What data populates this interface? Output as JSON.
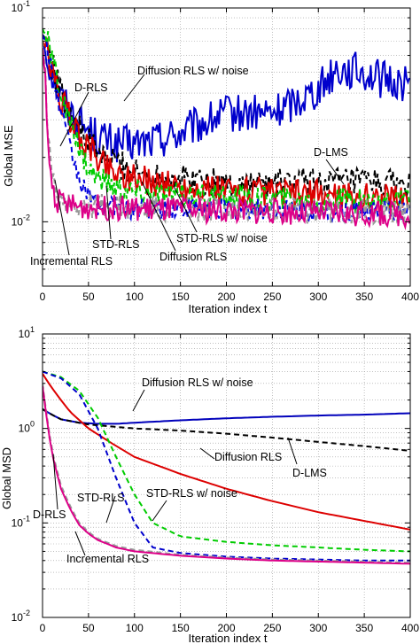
{
  "chart_data": [
    {
      "type": "line",
      "yscale": "log",
      "xlabel": "Iteration index t",
      "ylabel": "Global MSE",
      "xlim": [
        0,
        400
      ],
      "ylim": [
        0.005,
        0.1
      ],
      "grid": true,
      "xticks": [
        "0",
        "50",
        "100",
        "150",
        "200",
        "250",
        "300",
        "350",
        "400"
      ],
      "yticks": [
        {
          "value": 0.1,
          "base": "10",
          "exp": "-1"
        },
        {
          "value": 0.01,
          "base": "10",
          "exp": "-2"
        }
      ],
      "series": [
        {
          "name": "Diffusion RLS w/ noise",
          "color": "#0000cc",
          "dash": "solid",
          "noise": 0.09,
          "x": [
            0,
            5,
            10,
            20,
            40,
            60,
            80,
            100,
            120,
            150,
            200,
            250,
            300,
            320,
            350,
            370,
            400
          ],
          "y": [
            0.07,
            0.06,
            0.05,
            0.038,
            0.029,
            0.025,
            0.023,
            0.023,
            0.024,
            0.026,
            0.032,
            0.032,
            0.042,
            0.052,
            0.05,
            0.046,
            0.044
          ]
        },
        {
          "name": "D-LMS",
          "color": "#000000",
          "dash": "dashed",
          "noise": 0.07,
          "x": [
            0,
            5,
            10,
            20,
            40,
            60,
            80,
            100,
            150,
            200,
            250,
            300,
            350,
            400
          ],
          "y": [
            0.075,
            0.07,
            0.055,
            0.04,
            0.027,
            0.021,
            0.019,
            0.017,
            0.016,
            0.015,
            0.015,
            0.0155,
            0.0152,
            0.015
          ]
        },
        {
          "name": "Diffusion RLS",
          "color": "#dd0000",
          "dash": "solid",
          "noise": 0.07,
          "x": [
            0,
            5,
            10,
            20,
            40,
            60,
            80,
            100,
            150,
            200,
            250,
            300,
            350,
            400
          ],
          "y": [
            0.07,
            0.062,
            0.05,
            0.037,
            0.025,
            0.02,
            0.017,
            0.016,
            0.0145,
            0.014,
            0.0135,
            0.0135,
            0.013,
            0.013
          ]
        },
        {
          "name": "STD-RLS w/ noise",
          "color": "#00cc00",
          "dash": "dashed",
          "noise": 0.06,
          "x": [
            0,
            5,
            10,
            20,
            30,
            40,
            50,
            60,
            80,
            100,
            150,
            200,
            250,
            300,
            350,
            400
          ],
          "y": [
            0.08,
            0.07,
            0.06,
            0.04,
            0.028,
            0.022,
            0.018,
            0.016,
            0.0145,
            0.0138,
            0.0132,
            0.013,
            0.0128,
            0.0125,
            0.0125,
            0.0122
          ]
        },
        {
          "name": "STD-RLS",
          "color": "#0000dd",
          "dash": "dashed",
          "noise": 0.05,
          "x": [
            0,
            5,
            10,
            20,
            30,
            40,
            50,
            60,
            70,
            80,
            100,
            150,
            200,
            300,
            400
          ],
          "y": [
            0.075,
            0.065,
            0.05,
            0.033,
            0.022,
            0.016,
            0.013,
            0.012,
            0.0118,
            0.0118,
            0.0115,
            0.0115,
            0.0115,
            0.0112,
            0.0112
          ]
        },
        {
          "name": "D-RLS",
          "color": "#999999",
          "dash": "dashed",
          "noise": 0.06,
          "x": [
            0,
            3,
            6,
            10,
            15,
            20,
            40,
            100,
            200,
            300,
            400
          ],
          "y": [
            0.07,
            0.05,
            0.025,
            0.016,
            0.0135,
            0.0125,
            0.012,
            0.0115,
            0.0115,
            0.0112,
            0.011
          ]
        },
        {
          "name": "Incremental RLS",
          "color": "#dd0088",
          "dash": "solid",
          "noise": 0.06,
          "x": [
            0,
            3,
            6,
            10,
            15,
            20,
            40,
            100,
            200,
            300,
            400
          ],
          "y": [
            0.065,
            0.045,
            0.022,
            0.015,
            0.0128,
            0.0122,
            0.0118,
            0.0115,
            0.0113,
            0.011,
            0.0108
          ]
        }
      ],
      "annotations": [
        "Diffusion RLS w/ noise",
        "D-RLS",
        "D-LMS",
        "STD-RLS",
        "STD-RLS w/ noise",
        "Incremental RLS",
        "Diffusion RLS"
      ]
    },
    {
      "type": "line",
      "yscale": "log",
      "xlabel": "Iteration index t",
      "ylabel": "Global MSD",
      "xlim": [
        0,
        400
      ],
      "ylim": [
        0.01,
        10
      ],
      "grid": true,
      "xticks": [
        "0",
        "50",
        "100",
        "150",
        "200",
        "250",
        "300",
        "350",
        "400"
      ],
      "yticks": [
        {
          "value": 10,
          "base": "10",
          "exp": "1"
        },
        {
          "value": 1,
          "base": "10",
          "exp": "0"
        },
        {
          "value": 0.1,
          "base": "10",
          "exp": "-1"
        },
        {
          "value": 0.01,
          "base": "10",
          "exp": "-2"
        }
      ],
      "series": [
        {
          "name": "Diffusion RLS w/ noise",
          "color": "#0000bb",
          "dash": "solid",
          "noise": 0.0,
          "x": [
            0,
            10,
            20,
            40,
            60,
            80,
            100,
            150,
            200,
            250,
            300,
            350,
            400
          ],
          "y": [
            1.6,
            1.4,
            1.25,
            1.15,
            1.12,
            1.12,
            1.15,
            1.22,
            1.28,
            1.33,
            1.37,
            1.4,
            1.45
          ]
        },
        {
          "name": "D-LMS",
          "color": "#000000",
          "dash": "dashed",
          "noise": 0.0,
          "x": [
            0,
            10,
            20,
            50,
            100,
            150,
            200,
            250,
            300,
            350,
            400
          ],
          "y": [
            1.6,
            1.4,
            1.25,
            1.1,
            1.0,
            0.95,
            0.88,
            0.8,
            0.72,
            0.65,
            0.58
          ]
        },
        {
          "name": "Diffusion RLS",
          "color": "#dd0000",
          "dash": "solid",
          "noise": 0.0,
          "x": [
            0,
            10,
            20,
            30,
            50,
            75,
            100,
            150,
            200,
            250,
            300,
            350,
            400
          ],
          "y": [
            3.8,
            2.7,
            2.0,
            1.5,
            1.0,
            0.7,
            0.5,
            0.33,
            0.23,
            0.17,
            0.13,
            0.105,
            0.085
          ]
        },
        {
          "name": "STD-RLS w/ noise",
          "color": "#00cc00",
          "dash": "dashed",
          "noise": 0.0,
          "x": [
            0,
            20,
            40,
            60,
            80,
            100,
            120,
            150,
            200,
            250,
            300,
            350,
            400
          ],
          "y": [
            4.0,
            3.5,
            2.5,
            1.3,
            0.5,
            0.2,
            0.1,
            0.072,
            0.063,
            0.058,
            0.055,
            0.052,
            0.05
          ]
        },
        {
          "name": "STD-RLS",
          "color": "#0000cc",
          "dash": "dashed",
          "noise": 0.0,
          "x": [
            0,
            20,
            40,
            60,
            80,
            100,
            120,
            150,
            200,
            250,
            300,
            350,
            400
          ],
          "y": [
            4.0,
            3.4,
            2.3,
            1.0,
            0.3,
            0.1,
            0.055,
            0.048,
            0.044,
            0.042,
            0.041,
            0.04,
            0.04
          ]
        },
        {
          "name": "D-RLS",
          "color": "#999999",
          "dash": "dashed",
          "noise": 0.0,
          "x": [
            0,
            5,
            10,
            20,
            30,
            40,
            50,
            60,
            80,
            100,
            150,
            200,
            250,
            300,
            350,
            400
          ],
          "y": [
            3.0,
            1.3,
            0.6,
            0.25,
            0.15,
            0.1,
            0.08,
            0.068,
            0.057,
            0.052,
            0.046,
            0.043,
            0.041,
            0.04,
            0.039,
            0.038
          ]
        },
        {
          "name": "Incremental RLS",
          "color": "#dd0088",
          "dash": "solid",
          "noise": 0.0,
          "x": [
            0,
            5,
            10,
            20,
            30,
            40,
            50,
            60,
            80,
            100,
            150,
            200,
            250,
            300,
            350,
            400
          ],
          "y": [
            2.8,
            1.2,
            0.55,
            0.23,
            0.14,
            0.095,
            0.077,
            0.066,
            0.055,
            0.05,
            0.045,
            0.042,
            0.04,
            0.039,
            0.038,
            0.037
          ]
        }
      ],
      "annotations": [
        "Diffusion RLS w/ noise",
        "Diffusion RLS",
        "D-LMS",
        "STD-RLS",
        "STD-RLS w/ noise",
        "D-RLS",
        "Incremental RLS"
      ]
    }
  ]
}
